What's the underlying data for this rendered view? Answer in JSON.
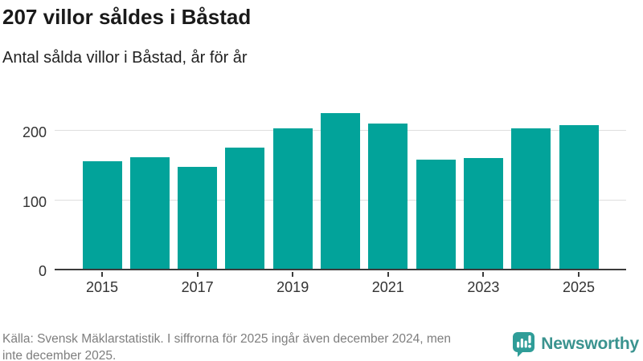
{
  "header": {
    "title": "207 villor såldes i Båstad",
    "subtitle": "Antal sålda villor i Båstad, år för år"
  },
  "chart_data": {
    "type": "bar",
    "title": "207 villor såldes i Båstad",
    "subtitle": "Antal sålda villor i Båstad, år för år",
    "categories": [
      2015,
      2016,
      2017,
      2018,
      2019,
      2020,
      2021,
      2022,
      2023,
      2024,
      2025
    ],
    "values": [
      155,
      161,
      147,
      175,
      203,
      225,
      209,
      157,
      160,
      202,
      207
    ],
    "x_tick_labels": [
      "2015",
      "2017",
      "2019",
      "2021",
      "2023",
      "2025"
    ],
    "y_ticks": [
      0,
      100,
      200
    ],
    "ylim": [
      0,
      228
    ],
    "xlabel": "",
    "ylabel": "",
    "grid": "horizontal",
    "legend": "none",
    "bar_color": "#02a39a"
  },
  "footer": {
    "source_lines": [
      "Källa: Svensk Mäklarstatistik. I siffrorna för 2025 ingår även december 2024, men",
      "inte december 2025."
    ],
    "logo_text": "Newsworthy"
  },
  "colors": {
    "bar": "#02a39a",
    "axis": "#3b3b3b",
    "grid": "#dedede",
    "title": "#1a1a1a",
    "subtitle": "#222222",
    "tick_text": "#333333",
    "muted": "#7e7e7e",
    "logo_text": "#3a938f",
    "logo_icon": "#2f9d98",
    "background": "#ffffff"
  }
}
